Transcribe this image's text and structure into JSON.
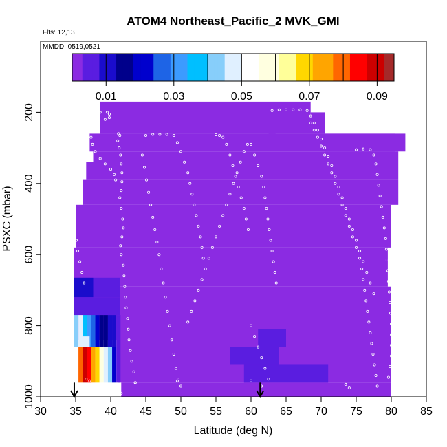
{
  "chart_data": {
    "type": "heatmap",
    "title": "ATOM4 Northeast_Pacific_2 MVK_GMI",
    "flights_label": "Flts: 12,13",
    "date_label": "MMDD: 0519,0521",
    "xlabel": "Latitude (deg N)",
    "ylabel": "PSXC (mbar)",
    "xlim": [
      30,
      85
    ],
    "ylim": [
      1000,
      0
    ],
    "x_ticks": [
      30,
      35,
      40,
      45,
      50,
      55,
      60,
      65,
      70,
      75,
      80,
      85
    ],
    "y_ticks": [
      200,
      400,
      600,
      800,
      1000
    ],
    "colorbar": {
      "min": 0.0,
      "max": 0.095,
      "ticks": [
        0.01,
        0.03,
        0.05,
        0.07,
        0.09
      ],
      "tick_labels": [
        "0.01",
        "0.03",
        "0.05",
        "0.07",
        "0.09"
      ],
      "colors": [
        "#8b2be2",
        "#5a1de0",
        "#1a0ccc",
        "#00008b",
        "#0000cd",
        "#1e64e6",
        "#3c9bff",
        "#00bfff",
        "#87cefa",
        "#e0f0ff",
        "#ffffff",
        "#ffffe0",
        "#ffff99",
        "#ffd700",
        "#ffa500",
        "#ff6600",
        "#ff0000",
        "#cc0000",
        "#a52a2a"
      ]
    },
    "background_value": 0.0,
    "background_cells": [
      {
        "lat": [
          38.5,
          68.5
        ],
        "p": [
          170,
          210
        ]
      },
      {
        "lat": [
          38.5,
          63.5
        ],
        "p": [
          210,
          260
        ]
      },
      {
        "lat": [
          68.5,
          70.5
        ],
        "p": [
          200,
          210
        ]
      },
      {
        "lat": [
          62.5,
          70.5
        ],
        "p": [
          210,
          260
        ]
      },
      {
        "lat": [
          70.5,
          82
        ],
        "p": [
          260,
          310
        ]
      },
      {
        "lat": [
          37.5,
          81
        ],
        "p": [
          310,
          340
        ]
      },
      {
        "lat": [
          37,
          80.5
        ],
        "p": [
          260,
          310
        ]
      },
      {
        "lat": [
          36.5,
          81
        ],
        "p": [
          340,
          390
        ]
      },
      {
        "lat": [
          36,
          81
        ],
        "p": [
          390,
          460
        ]
      },
      {
        "lat": [
          35,
          80
        ],
        "p": [
          460,
          580
        ]
      },
      {
        "lat": [
          34.8,
          79.5
        ],
        "p": [
          580,
          690
        ]
      },
      {
        "lat": [
          34.8,
          80
        ],
        "p": [
          690,
          840
        ]
      },
      {
        "lat": [
          41,
          80
        ],
        "p": [
          840,
          960
        ]
      },
      {
        "lat": [
          41.5,
          80
        ],
        "p": [
          960,
          1000
        ]
      }
    ],
    "highlight_cells": [
      {
        "lat": [
          34.8,
          37.5
        ],
        "p": [
          665,
          720
        ],
        "value": 0.008
      },
      {
        "lat": [
          37.5,
          41.3
        ],
        "p": [
          665,
          720
        ],
        "value": 0.005
      },
      {
        "lat": [
          34.8,
          41.3
        ],
        "p": [
          720,
          770
        ],
        "value": 0.007
      },
      {
        "lat": [
          34.8,
          35.4
        ],
        "p": [
          770,
          860
        ],
        "value": 0.04
      },
      {
        "lat": [
          35.4,
          36.0
        ],
        "p": [
          770,
          860
        ],
        "value": 0.045
      },
      {
        "lat": [
          36.0,
          36.6
        ],
        "p": [
          770,
          860
        ],
        "value": 0.038
      },
      {
        "lat": [
          36.6,
          37.2
        ],
        "p": [
          770,
          860
        ],
        "value": 0.032
      },
      {
        "lat": [
          37.2,
          37.8
        ],
        "p": [
          770,
          860
        ],
        "value": 0.027
      },
      {
        "lat": [
          37.8,
          38.4
        ],
        "p": [
          770,
          860
        ],
        "value": 0.022
      },
      {
        "lat": [
          38.4,
          39.0
        ],
        "p": [
          770,
          860
        ],
        "value": 0.018
      },
      {
        "lat": [
          39.0,
          39.6
        ],
        "p": [
          770,
          860
        ],
        "value": 0.014
      },
      {
        "lat": [
          39.6,
          40.2
        ],
        "p": [
          770,
          860
        ],
        "value": 0.011
      },
      {
        "lat": [
          40.2,
          40.8
        ],
        "p": [
          770,
          860
        ],
        "value": 0.008
      },
      {
        "lat": [
          40.8,
          41.4
        ],
        "p": [
          770,
          860
        ],
        "value": 0.006
      },
      {
        "lat": [
          35.4,
          36.0
        ],
        "p": [
          860,
          960
        ],
        "value": 0.078
      },
      {
        "lat": [
          36.0,
          36.6
        ],
        "p": [
          860,
          960
        ],
        "value": 0.09
      },
      {
        "lat": [
          36.6,
          37.2
        ],
        "p": [
          860,
          960
        ],
        "value": 0.085
      },
      {
        "lat": [
          37.2,
          37.8
        ],
        "p": [
          860,
          960
        ],
        "value": 0.075
      },
      {
        "lat": [
          37.8,
          38.4
        ],
        "p": [
          860,
          960
        ],
        "value": 0.068
      },
      {
        "lat": [
          38.4,
          39.0
        ],
        "p": [
          860,
          960
        ],
        "value": 0.06
      },
      {
        "lat": [
          39.0,
          39.6
        ],
        "p": [
          860,
          960
        ],
        "value": 0.05
      },
      {
        "lat": [
          39.6,
          40.2
        ],
        "p": [
          860,
          960
        ],
        "value": 0.04
      },
      {
        "lat": [
          40.2,
          40.8
        ],
        "p": [
          860,
          960
        ],
        "value": 0.02
      },
      {
        "lat": [
          40.8,
          41.4
        ],
        "p": [
          860,
          960
        ],
        "value": 0.006
      },
      {
        "lat": [
          35.8,
          37.0
        ],
        "p": [
          830,
          860
        ],
        "value": 0.05
      },
      {
        "lat": [
          57,
          64
        ],
        "p": [
          860,
          910
        ],
        "value": 0.003
      },
      {
        "lat": [
          61,
          65
        ],
        "p": [
          810,
          860
        ],
        "value": 0.003
      },
      {
        "lat": [
          59,
          71
        ],
        "p": [
          910,
          960
        ],
        "value": 0.003
      }
    ],
    "flight_track_points": [
      [
        38.5,
        200
      ],
      [
        39.5,
        200
      ],
      [
        39.8,
        205
      ],
      [
        39.8,
        215
      ],
      [
        39.2,
        220
      ],
      [
        38.0,
        235
      ],
      [
        37.5,
        250
      ],
      [
        37.2,
        270
      ],
      [
        37.4,
        290
      ],
      [
        37.8,
        310
      ],
      [
        38.5,
        330
      ],
      [
        39.2,
        345
      ],
      [
        40.0,
        360
      ],
      [
        40.5,
        375
      ],
      [
        40.7,
        390
      ],
      [
        41.1,
        260
      ],
      [
        41.3,
        265
      ],
      [
        41.0,
        280
      ],
      [
        41.2,
        300
      ],
      [
        41.4,
        320
      ],
      [
        41.5,
        345
      ],
      [
        41.6,
        370
      ],
      [
        41.6,
        395
      ],
      [
        41.5,
        420
      ],
      [
        41.3,
        440
      ],
      [
        41.5,
        470
      ],
      [
        41.7,
        500
      ],
      [
        41.8,
        525
      ],
      [
        41.6,
        550
      ],
      [
        41.4,
        575
      ],
      [
        41.5,
        600
      ],
      [
        41.8,
        630
      ],
      [
        41.9,
        660
      ],
      [
        42.0,
        690
      ],
      [
        42.1,
        720
      ],
      [
        42.2,
        750
      ],
      [
        42.4,
        780
      ],
      [
        42.5,
        810
      ],
      [
        42.6,
        840
      ],
      [
        42.8,
        870
      ],
      [
        43.0,
        900
      ],
      [
        43.3,
        930
      ],
      [
        43.5,
        960
      ],
      [
        34.8,
        520
      ],
      [
        34.9,
        540
      ],
      [
        35.1,
        560
      ],
      [
        35.3,
        590
      ],
      [
        35.6,
        620
      ],
      [
        35.9,
        650
      ],
      [
        36.2,
        680
      ],
      [
        44.5,
        320
      ],
      [
        44.8,
        355
      ],
      [
        45.1,
        390
      ],
      [
        45.4,
        425
      ],
      [
        45.7,
        460
      ],
      [
        46.0,
        495
      ],
      [
        46.3,
        530
      ],
      [
        46.6,
        565
      ],
      [
        46.9,
        600
      ],
      [
        47.2,
        640
      ],
      [
        47.5,
        680
      ],
      [
        47.8,
        720
      ],
      [
        48.1,
        760
      ],
      [
        48.4,
        800
      ],
      [
        48.7,
        840
      ],
      [
        49.0,
        880
      ],
      [
        49.3,
        920
      ],
      [
        49.6,
        950
      ],
      [
        45.0,
        265
      ],
      [
        46.0,
        262
      ],
      [
        47.0,
        262
      ],
      [
        48.0,
        262
      ],
      [
        49.0,
        265
      ],
      [
        49.5,
        285
      ],
      [
        50.0,
        310
      ],
      [
        50.5,
        340
      ],
      [
        51.0,
        370
      ],
      [
        51.3,
        400
      ],
      [
        51.6,
        430
      ],
      [
        51.9,
        460
      ],
      [
        52.2,
        490
      ],
      [
        52.5,
        520
      ],
      [
        52.8,
        550
      ],
      [
        53.0,
        580
      ],
      [
        53.2,
        610
      ],
      [
        55.0,
        263
      ],
      [
        55.5,
        265
      ],
      [
        56.0,
        270
      ],
      [
        56.5,
        290
      ],
      [
        57.0,
        320
      ],
      [
        57.4,
        350
      ],
      [
        57.8,
        380
      ],
      [
        58.2,
        410
      ],
      [
        58.6,
        440
      ],
      [
        59.0,
        470
      ],
      [
        59.3,
        500
      ],
      [
        59.6,
        530
      ],
      [
        59.5,
        290
      ],
      [
        59.0,
        310
      ],
      [
        58.5,
        340
      ],
      [
        58.0,
        370
      ],
      [
        57.5,
        400
      ],
      [
        57.0,
        430
      ],
      [
        56.5,
        460
      ],
      [
        56.0,
        490
      ],
      [
        55.5,
        520
      ],
      [
        55.0,
        550
      ],
      [
        54.5,
        580
      ],
      [
        54.0,
        610
      ],
      [
        53.5,
        640
      ],
      [
        53.0,
        670
      ],
      [
        52.5,
        700
      ],
      [
        52.0,
        730
      ],
      [
        51.5,
        760
      ],
      [
        51.0,
        790
      ],
      [
        60.0,
        290
      ],
      [
        60.5,
        320
      ],
      [
        61.0,
        350
      ],
      [
        61.5,
        380
      ],
      [
        61.8,
        410
      ],
      [
        62.0,
        440
      ],
      [
        62.2,
        470
      ],
      [
        62.4,
        500
      ],
      [
        62.6,
        530
      ],
      [
        62.8,
        560
      ],
      [
        63.0,
        590
      ],
      [
        63.2,
        620
      ],
      [
        63.4,
        650
      ],
      [
        63.6,
        680
      ],
      [
        60.0,
        800
      ],
      [
        60.5,
        830
      ],
      [
        61.0,
        860
      ],
      [
        61.5,
        890
      ],
      [
        62.0,
        920
      ],
      [
        62.5,
        950
      ],
      [
        63.0,
        195
      ],
      [
        64.0,
        193
      ],
      [
        65.0,
        193
      ],
      [
        66.0,
        193
      ],
      [
        67.0,
        193
      ],
      [
        68.0,
        195
      ],
      [
        68.5,
        210
      ],
      [
        69.0,
        230
      ],
      [
        69.5,
        250
      ],
      [
        70.0,
        275
      ],
      [
        70.5,
        300
      ],
      [
        71.0,
        325
      ],
      [
        71.5,
        350
      ],
      [
        72.0,
        380
      ],
      [
        72.5,
        410
      ],
      [
        73.0,
        440
      ],
      [
        73.5,
        470
      ],
      [
        74.0,
        500
      ],
      [
        74.5,
        530
      ],
      [
        75.0,
        560
      ],
      [
        75.5,
        590
      ],
      [
        76.0,
        620
      ],
      [
        76.5,
        650
      ],
      [
        77.0,
        680
      ],
      [
        77.5,
        710
      ],
      [
        75.0,
        305
      ],
      [
        76.0,
        303
      ],
      [
        77.0,
        305
      ],
      [
        77.5,
        320
      ],
      [
        77.8,
        345
      ],
      [
        78.0,
        375
      ],
      [
        78.2,
        405
      ],
      [
        78.4,
        435
      ],
      [
        78.6,
        465
      ],
      [
        78.8,
        495
      ],
      [
        79.0,
        525
      ],
      [
        79.2,
        555
      ],
      [
        79.3,
        585
      ],
      [
        79.4,
        615
      ],
      [
        79.5,
        645
      ],
      [
        79.6,
        675
      ],
      [
        79.7,
        705
      ],
      [
        79.8,
        735
      ],
      [
        79.9,
        765
      ],
      [
        80.0,
        795
      ],
      [
        80.0,
        825
      ],
      [
        80.0,
        855
      ],
      [
        80.0,
        885
      ],
      [
        79.8,
        915
      ],
      [
        79.6,
        945
      ],
      [
        68.5,
        230
      ],
      [
        69.0,
        250
      ],
      [
        69.5,
        270
      ],
      [
        70.0,
        295
      ],
      [
        70.5,
        320
      ],
      [
        71.0,
        345
      ],
      [
        71.5,
        370
      ],
      [
        72.0,
        400
      ],
      [
        72.5,
        430
      ],
      [
        73.0,
        460
      ],
      [
        73.5,
        490
      ],
      [
        74.0,
        520
      ],
      [
        74.5,
        550
      ],
      [
        75.0,
        580
      ],
      [
        75.5,
        610
      ],
      [
        75.8,
        640
      ],
      [
        76.0,
        670
      ],
      [
        76.2,
        700
      ],
      [
        76.4,
        730
      ],
      [
        76.6,
        760
      ],
      [
        76.8,
        790
      ],
      [
        77.0,
        820
      ],
      [
        77.2,
        850
      ],
      [
        77.4,
        880
      ],
      [
        77.6,
        910
      ],
      [
        77.8,
        940
      ],
      [
        78.0,
        970
      ],
      [
        36.5,
        950
      ],
      [
        37.0,
        955
      ],
      [
        41.5,
        990
      ],
      [
        43.5,
        960
      ],
      [
        49.5,
        955
      ],
      [
        50.0,
        970
      ],
      [
        60.0,
        955
      ],
      [
        61.5,
        970
      ],
      [
        73.5,
        965
      ],
      [
        74.0,
        975
      ]
    ],
    "arrows": [
      {
        "lat": 34.8,
        "p_from": 960,
        "p_to": 1000
      },
      {
        "lat": 61.3,
        "p_from": 960,
        "p_to": 1000
      }
    ]
  }
}
